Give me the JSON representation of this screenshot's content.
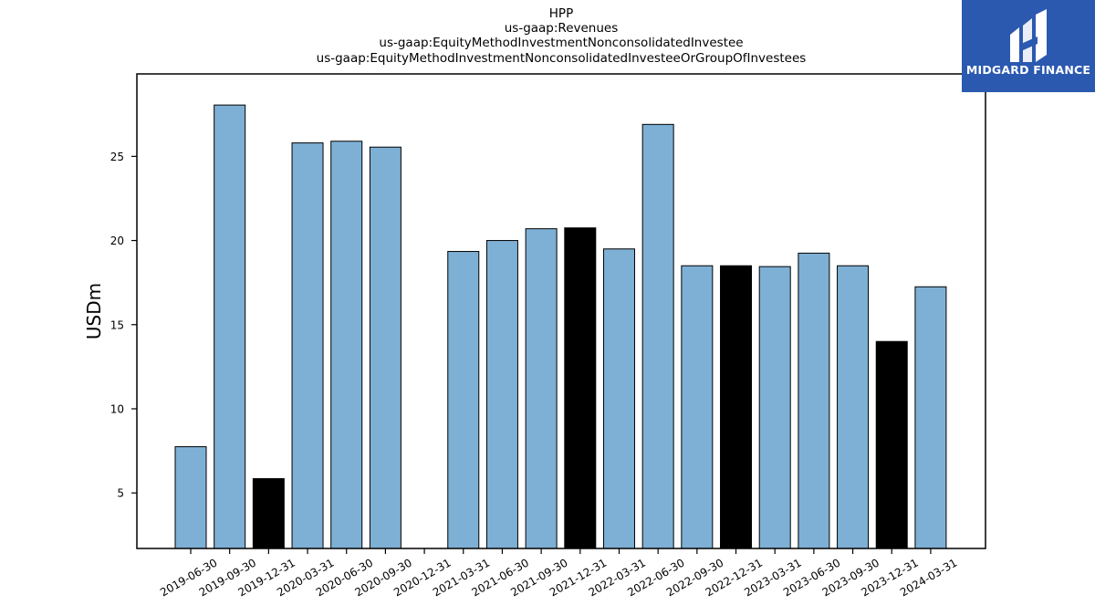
{
  "chart_data": {
    "type": "bar",
    "title_lines": [
      "HPP",
      "us-gaap:Revenues",
      "us-gaap:EquityMethodInvestmentNonconsolidatedInvestee",
      "us-gaap:EquityMethodInvestmentNonconsolidatedInvesteeOrGroupOfInvestees"
    ],
    "ylabel": "USDm",
    "xlabel": "",
    "ylim": [
      1.7,
      29.9
    ],
    "yticks": [
      5,
      10,
      15,
      20,
      25
    ],
    "categories": [
      "2019-06-30",
      "2019-09-30",
      "2019-12-31",
      "2020-03-31",
      "2020-06-30",
      "2020-09-30",
      "2020-12-31",
      "2021-03-31",
      "2021-06-30",
      "2021-09-30",
      "2021-12-31",
      "2022-03-31",
      "2022-06-30",
      "2022-09-30",
      "2022-12-31",
      "2023-03-31",
      "2023-06-30",
      "2023-09-30",
      "2023-12-31",
      "2024-03-31"
    ],
    "values": [
      7.75,
      28.05,
      5.85,
      25.8,
      25.9,
      25.55,
      null,
      19.35,
      20.0,
      20.7,
      20.75,
      19.5,
      26.9,
      18.5,
      18.5,
      18.45,
      19.25,
      18.5,
      14.0,
      17.25
    ],
    "bar_colors": [
      "#7eb0d5",
      "#7eb0d5",
      "#000000",
      "#7eb0d5",
      "#7eb0d5",
      "#7eb0d5",
      "#7eb0d5",
      "#7eb0d5",
      "#7eb0d5",
      "#7eb0d5",
      "#000000",
      "#7eb0d5",
      "#7eb0d5",
      "#7eb0d5",
      "#000000",
      "#7eb0d5",
      "#7eb0d5",
      "#7eb0d5",
      "#000000",
      "#7eb0d5"
    ],
    "grid": false,
    "legend": "none"
  },
  "logo": {
    "text": "MIDGARD FINANCE",
    "background": "#2b59b0",
    "icon": "midgard-logo-icon"
  }
}
